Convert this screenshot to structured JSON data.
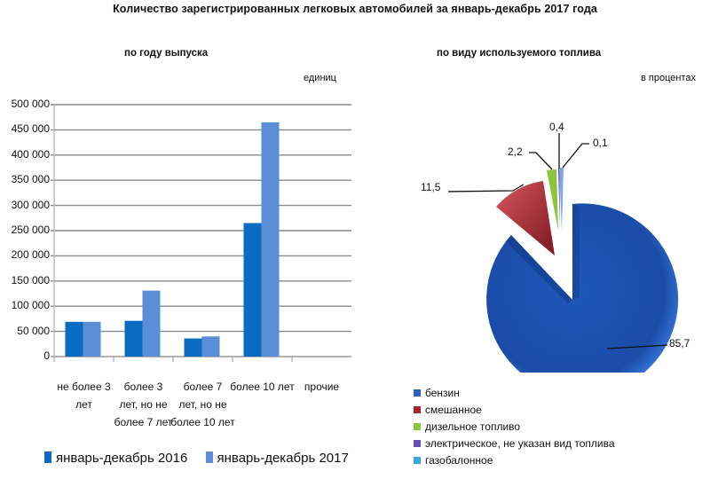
{
  "title": "Количество зарегистрированных  легковых автомобилей  за январь-декабрь  2017 года",
  "left": {
    "subtitle": "по году выпуска",
    "unit": "единиц"
  },
  "right": {
    "subtitle": "по виду используемого  топлива",
    "unit": "в процентах"
  },
  "chart_data": [
    {
      "type": "bar",
      "title": "по году выпуска",
      "ylabel": "единиц",
      "xlabel": "",
      "ylim": [
        0,
        500000
      ],
      "yticks": [
        "500 000",
        "450 000",
        "400 000",
        "350 000",
        "300 000",
        "250 000",
        "200 000",
        "150 000",
        "100 000",
        "50 000",
        "0"
      ],
      "categories": [
        "не более 3 лет",
        "более 3 лет, но не более 7 лет",
        "более 7 лет, но не более 10 лет",
        "более 10 лет",
        "прочие"
      ],
      "category_lines": [
        [
          "не более 3",
          "лет"
        ],
        [
          "более 3",
          "лет, но не",
          "более 7 лет"
        ],
        [
          "более 7",
          "лет, но не",
          "более 10 лет"
        ],
        [
          "более 10 лет"
        ],
        [
          "прочие"
        ]
      ],
      "series": [
        {
          "name": "январь-декабрь 2016",
          "color": "#0a6bc2",
          "values": [
            69000,
            71000,
            36000,
            265000,
            0
          ]
        },
        {
          "name": "январь-декабрь 2017",
          "color": "#5a8fd8",
          "values": [
            69000,
            131000,
            40000,
            465000,
            0
          ]
        }
      ],
      "grid": true,
      "legend_position": "bottom"
    },
    {
      "type": "pie",
      "title": "по виду используемого  топлива",
      "unit": "в процентах",
      "labels": [
        "бензин",
        "смешанное",
        "дизельное топливо",
        "электрическое, не указан вид топлива",
        "газобалонное"
      ],
      "values": [
        85.7,
        11.5,
        2.2,
        0.1,
        0.4
      ],
      "value_labels": [
        "85,7",
        "11,5",
        "2,2",
        "0,1",
        "0,4"
      ],
      "colors": [
        "#2a5fc4",
        "#a8262e",
        "#8cc63f",
        "#6a4fb0",
        "#3aa6e0"
      ],
      "legend_position": "bottom-left",
      "exploded": true
    }
  ]
}
